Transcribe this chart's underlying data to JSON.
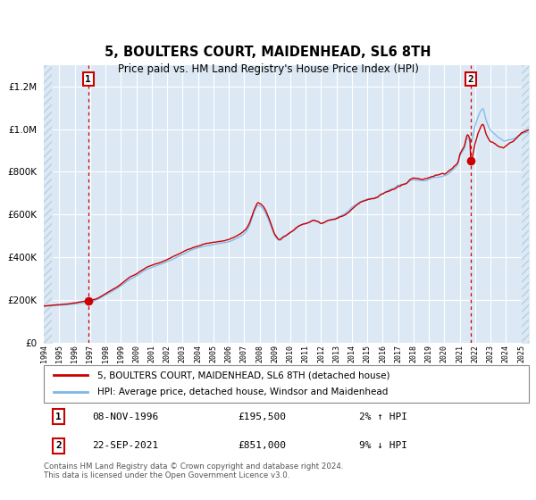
{
  "title": "5, BOULTERS COURT, MAIDENHEAD, SL6 8TH",
  "subtitle": "Price paid vs. HM Land Registry's House Price Index (HPI)",
  "legend_line1": "5, BOULTERS COURT, MAIDENHEAD, SL6 8TH (detached house)",
  "legend_line2": "HPI: Average price, detached house, Windsor and Maidenhead",
  "annotation1_date": "08-NOV-1996",
  "annotation1_price": "£195,500",
  "annotation1_hpi": "2% ↑ HPI",
  "annotation2_date": "22-SEP-2021",
  "annotation2_price": "£851,000",
  "annotation2_hpi": "9% ↓ HPI",
  "footer": "Contains HM Land Registry data © Crown copyright and database right 2024.\nThis data is licensed under the Open Government Licence v3.0.",
  "sale1_year": 1996.87,
  "sale1_value": 195500,
  "sale2_year": 2021.72,
  "sale2_value": 851000,
  "hpi_color": "#7ab8e8",
  "price_color": "#cc0000",
  "bg_color": "#dce9f5",
  "hatch_color": "#b8cfe0",
  "ylim_min": 0,
  "ylim_max": 1300000,
  "xlim_min": 1994.0,
  "xlim_max": 2025.5,
  "yticks": [
    0,
    200000,
    400000,
    600000,
    800000,
    1000000,
    1200000
  ],
  "xtick_years": [
    1994,
    1995,
    1996,
    1997,
    1998,
    1999,
    2000,
    2001,
    2002,
    2003,
    2004,
    2005,
    2006,
    2007,
    2008,
    2009,
    2010,
    2011,
    2012,
    2013,
    2014,
    2015,
    2016,
    2017,
    2018,
    2019,
    2020,
    2021,
    2022,
    2023,
    2024,
    2025
  ]
}
